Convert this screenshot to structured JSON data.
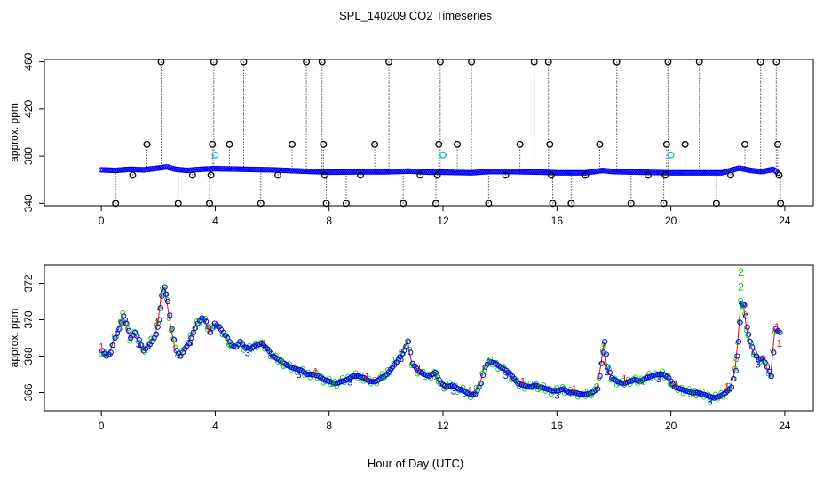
{
  "title": "SPL_140209  CO2 Timeseries",
  "xlabel": "Hour of Day (UTC)",
  "colors": {
    "blue": "#0000ff",
    "red": "#ff0000",
    "green": "#00cc00",
    "cyan": "#00c8c8",
    "black": "#000000"
  },
  "chart_data": [
    {
      "type": "scatter",
      "panel": "top",
      "ylabel": "approx. ppm",
      "xlim": [
        -2,
        25
      ],
      "ylim": [
        338,
        462
      ],
      "xticks": [
        0,
        4,
        8,
        12,
        16,
        20,
        24
      ],
      "yticks": [
        340,
        380,
        420,
        460
      ],
      "baseline": [
        [
          0,
          368.5
        ],
        [
          0.5,
          368
        ],
        [
          1,
          369
        ],
        [
          1.5,
          368.5
        ],
        [
          2,
          370
        ],
        [
          2.3,
          371
        ],
        [
          2.6,
          369
        ],
        [
          3,
          368
        ],
        [
          3.5,
          369
        ],
        [
          4,
          369.5
        ],
        [
          5,
          369
        ],
        [
          6,
          368.5
        ],
        [
          7,
          367.5
        ],
        [
          8,
          366.5
        ],
        [
          9,
          366.8
        ],
        [
          10,
          366.8
        ],
        [
          10.8,
          367.5
        ],
        [
          11.5,
          366.5
        ],
        [
          12,
          366.5
        ],
        [
          13,
          366
        ],
        [
          13.6,
          367
        ],
        [
          14.5,
          367
        ],
        [
          15.5,
          366.5
        ],
        [
          16,
          366
        ],
        [
          17,
          366
        ],
        [
          17.6,
          368
        ],
        [
          18,
          367
        ],
        [
          19,
          366.5
        ],
        [
          20,
          366
        ],
        [
          21,
          366
        ],
        [
          21.8,
          366
        ],
        [
          22.4,
          370
        ],
        [
          22.8,
          368
        ],
        [
          23.2,
          367
        ],
        [
          23.6,
          369
        ],
        [
          23.8,
          365
        ]
      ],
      "outliers": [
        {
          "x": 0.5,
          "y": 340
        },
        {
          "x": 1.1,
          "y": 364
        },
        {
          "x": 1.6,
          "y": 390
        },
        {
          "x": 2.1,
          "y": 460
        },
        {
          "x": 2.7,
          "y": 340
        },
        {
          "x": 3.2,
          "y": 364
        },
        {
          "x": 3.8,
          "y": 340
        },
        {
          "x": 3.85,
          "y": 364
        },
        {
          "x": 3.9,
          "y": 390
        },
        {
          "x": 3.95,
          "y": 460
        },
        {
          "x": 4.5,
          "y": 390
        },
        {
          "x": 5.0,
          "y": 460
        },
        {
          "x": 5.6,
          "y": 340
        },
        {
          "x": 6.2,
          "y": 364
        },
        {
          "x": 6.7,
          "y": 390
        },
        {
          "x": 7.2,
          "y": 460
        },
        {
          "x": 7.75,
          "y": 460
        },
        {
          "x": 7.8,
          "y": 390
        },
        {
          "x": 7.85,
          "y": 364
        },
        {
          "x": 7.9,
          "y": 340
        },
        {
          "x": 8.6,
          "y": 340
        },
        {
          "x": 9.1,
          "y": 364
        },
        {
          "x": 9.6,
          "y": 390
        },
        {
          "x": 10.1,
          "y": 460
        },
        {
          "x": 10.6,
          "y": 340
        },
        {
          "x": 11.2,
          "y": 364
        },
        {
          "x": 11.75,
          "y": 340
        },
        {
          "x": 11.8,
          "y": 364
        },
        {
          "x": 11.85,
          "y": 390
        },
        {
          "x": 11.9,
          "y": 460
        },
        {
          "x": 12.5,
          "y": 390
        },
        {
          "x": 13.0,
          "y": 460
        },
        {
          "x": 13.6,
          "y": 340
        },
        {
          "x": 14.2,
          "y": 364
        },
        {
          "x": 14.7,
          "y": 390
        },
        {
          "x": 15.2,
          "y": 460
        },
        {
          "x": 15.7,
          "y": 460
        },
        {
          "x": 15.75,
          "y": 390
        },
        {
          "x": 15.8,
          "y": 364
        },
        {
          "x": 15.85,
          "y": 340
        },
        {
          "x": 16.5,
          "y": 340
        },
        {
          "x": 17.0,
          "y": 364
        },
        {
          "x": 17.5,
          "y": 390
        },
        {
          "x": 18.1,
          "y": 460
        },
        {
          "x": 18.6,
          "y": 340
        },
        {
          "x": 19.2,
          "y": 364
        },
        {
          "x": 19.75,
          "y": 340
        },
        {
          "x": 19.8,
          "y": 364
        },
        {
          "x": 19.85,
          "y": 390
        },
        {
          "x": 19.9,
          "y": 460
        },
        {
          "x": 20.5,
          "y": 390
        },
        {
          "x": 21.0,
          "y": 460
        },
        {
          "x": 21.6,
          "y": 340
        },
        {
          "x": 22.1,
          "y": 364
        },
        {
          "x": 22.6,
          "y": 390
        },
        {
          "x": 23.15,
          "y": 460
        },
        {
          "x": 23.7,
          "y": 460
        },
        {
          "x": 23.75,
          "y": 390
        },
        {
          "x": 23.8,
          "y": 364
        },
        {
          "x": 23.85,
          "y": 340
        }
      ],
      "cyan_points": [
        {
          "x": 4.0,
          "y": 381
        },
        {
          "x": 12.0,
          "y": 381
        },
        {
          "x": 20.0,
          "y": 381
        }
      ]
    },
    {
      "type": "line",
      "panel": "bottom",
      "ylabel": "approx. ppm",
      "xlim": [
        -2,
        25
      ],
      "ylim": [
        365,
        373
      ],
      "xticks": [
        0,
        4,
        8,
        12,
        16,
        20,
        24
      ],
      "yticks": [
        366,
        368,
        370,
        372
      ],
      "series_labels": [
        "1",
        "2",
        "3"
      ],
      "x": [
        0,
        0.15,
        0.3,
        0.45,
        0.6,
        0.75,
        0.85,
        1.0,
        1.15,
        1.3,
        1.45,
        1.6,
        1.75,
        1.9,
        2.0,
        2.1,
        2.2,
        2.3,
        2.45,
        2.6,
        2.75,
        2.9,
        3.05,
        3.2,
        3.35,
        3.5,
        3.65,
        3.8,
        3.95,
        4.1,
        4.25,
        4.4,
        4.55,
        4.7,
        4.85,
        5.0,
        5.2,
        5.4,
        5.6,
        5.8,
        6.0,
        6.2,
        6.4,
        6.6,
        6.8,
        7.0,
        7.2,
        7.4,
        7.6,
        7.8,
        8.0,
        8.2,
        8.4,
        8.6,
        8.8,
        9.0,
        9.2,
        9.4,
        9.6,
        9.8,
        10.0,
        10.2,
        10.4,
        10.6,
        10.75,
        10.9,
        11.1,
        11.3,
        11.5,
        11.7,
        11.9,
        12.1,
        12.3,
        12.5,
        12.7,
        12.9,
        13.1,
        13.3,
        13.45,
        13.6,
        13.8,
        14.0,
        14.2,
        14.4,
        14.6,
        14.8,
        15.0,
        15.2,
        15.4,
        15.6,
        15.8,
        16.0,
        16.2,
        16.4,
        16.6,
        16.8,
        17.0,
        17.2,
        17.4,
        17.55,
        17.65,
        17.75,
        17.9,
        18.1,
        18.3,
        18.5,
        18.7,
        18.9,
        19.1,
        19.3,
        19.5,
        19.7,
        19.9,
        20.1,
        20.3,
        20.5,
        20.7,
        20.9,
        21.1,
        21.3,
        21.5,
        21.7,
        21.9,
        22.1,
        22.25,
        22.35,
        22.45,
        22.55,
        22.65,
        22.75,
        22.9,
        23.05,
        23.2,
        23.35,
        23.5,
        23.65,
        23.8
      ],
      "y": [
        368.3,
        368.0,
        368.2,
        369.0,
        369.5,
        370.2,
        369.8,
        369.0,
        369.3,
        368.9,
        368.3,
        368.5,
        368.8,
        369.2,
        370.0,
        371.3,
        371.8,
        371.0,
        369.5,
        368.3,
        368.0,
        368.4,
        368.7,
        369.3,
        369.8,
        370.1,
        369.9,
        369.3,
        369.8,
        369.6,
        369.3,
        369.0,
        368.6,
        368.5,
        368.8,
        368.5,
        368.4,
        368.6,
        368.7,
        368.4,
        368.0,
        367.8,
        367.6,
        367.4,
        367.3,
        367.2,
        367.0,
        367.0,
        366.9,
        366.7,
        366.6,
        366.5,
        366.6,
        366.7,
        366.9,
        366.9,
        366.8,
        366.6,
        366.6,
        366.8,
        367.0,
        367.4,
        367.8,
        368.3,
        368.8,
        367.6,
        367.2,
        367.0,
        366.9,
        367.1,
        366.5,
        366.3,
        366.4,
        366.2,
        366.1,
        365.9,
        365.9,
        366.5,
        367.4,
        367.7,
        367.6,
        367.4,
        367.2,
        366.9,
        366.5,
        366.4,
        366.3,
        366.4,
        366.3,
        366.2,
        366.1,
        366.1,
        366.2,
        366.0,
        366.0,
        365.9,
        365.9,
        366.0,
        366.2,
        367.6,
        368.8,
        367.4,
        366.8,
        366.6,
        366.5,
        366.6,
        366.7,
        366.6,
        366.8,
        366.9,
        367.0,
        367.0,
        366.8,
        366.3,
        366.2,
        366.1,
        366.0,
        366.0,
        365.9,
        365.8,
        365.7,
        365.8,
        366.0,
        366.3,
        367.2,
        368.8,
        370.9,
        370.8,
        369.6,
        368.8,
        368.2,
        367.8,
        367.9,
        367.4,
        366.9,
        369.5,
        369.3
      ],
      "peak_labels": [
        {
          "x": 22.45,
          "y": 372.6,
          "text": "2"
        },
        {
          "x": 22.45,
          "y": 371.8,
          "text": "2"
        },
        {
          "x": 23.8,
          "y": 368.7,
          "text": "1"
        }
      ]
    }
  ]
}
